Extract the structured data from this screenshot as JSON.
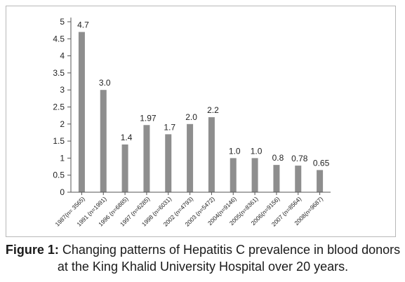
{
  "caption": {
    "lead": "Figure 1:",
    "text": " Changing patterns of Hepatitis C prevalence in blood donors at the King Khalid University Hospital over 20 years."
  },
  "colors": {
    "bar": "#8e8e8e",
    "axis": "#555555",
    "frame": "#b8b8b8"
  },
  "chart_data": {
    "type": "bar",
    "title": "",
    "xlabel": "",
    "ylabel": "",
    "ylim": [
      0,
      5
    ],
    "yticks": [
      0,
      0.5,
      1,
      1.5,
      2,
      2.5,
      3,
      3.5,
      4,
      4.5,
      5
    ],
    "grid": false,
    "legend": "none",
    "categories": [
      "1987(n= 3565)",
      "1991 (n=1991)",
      "1996 (n=6885)",
      "1997 (n=6285)",
      "1998 (n=6031)",
      "2002 (n=4793)",
      "2003 (n=5472)",
      "2004(n=9146)",
      "2005(n=8361)",
      "2006(n=9156)",
      "2007 (n=8564)",
      "2008(n=9687)"
    ],
    "values": [
      4.7,
      3.0,
      1.4,
      1.97,
      1.7,
      2.0,
      2.2,
      1.0,
      1.0,
      0.8,
      0.78,
      0.65
    ],
    "data_labels": [
      "4.7",
      "3.0",
      "1.4",
      "1.97",
      "1.7",
      "2.0",
      "2.2",
      "1.0",
      "1.0",
      "0.8",
      "0.78",
      "0.65"
    ]
  }
}
